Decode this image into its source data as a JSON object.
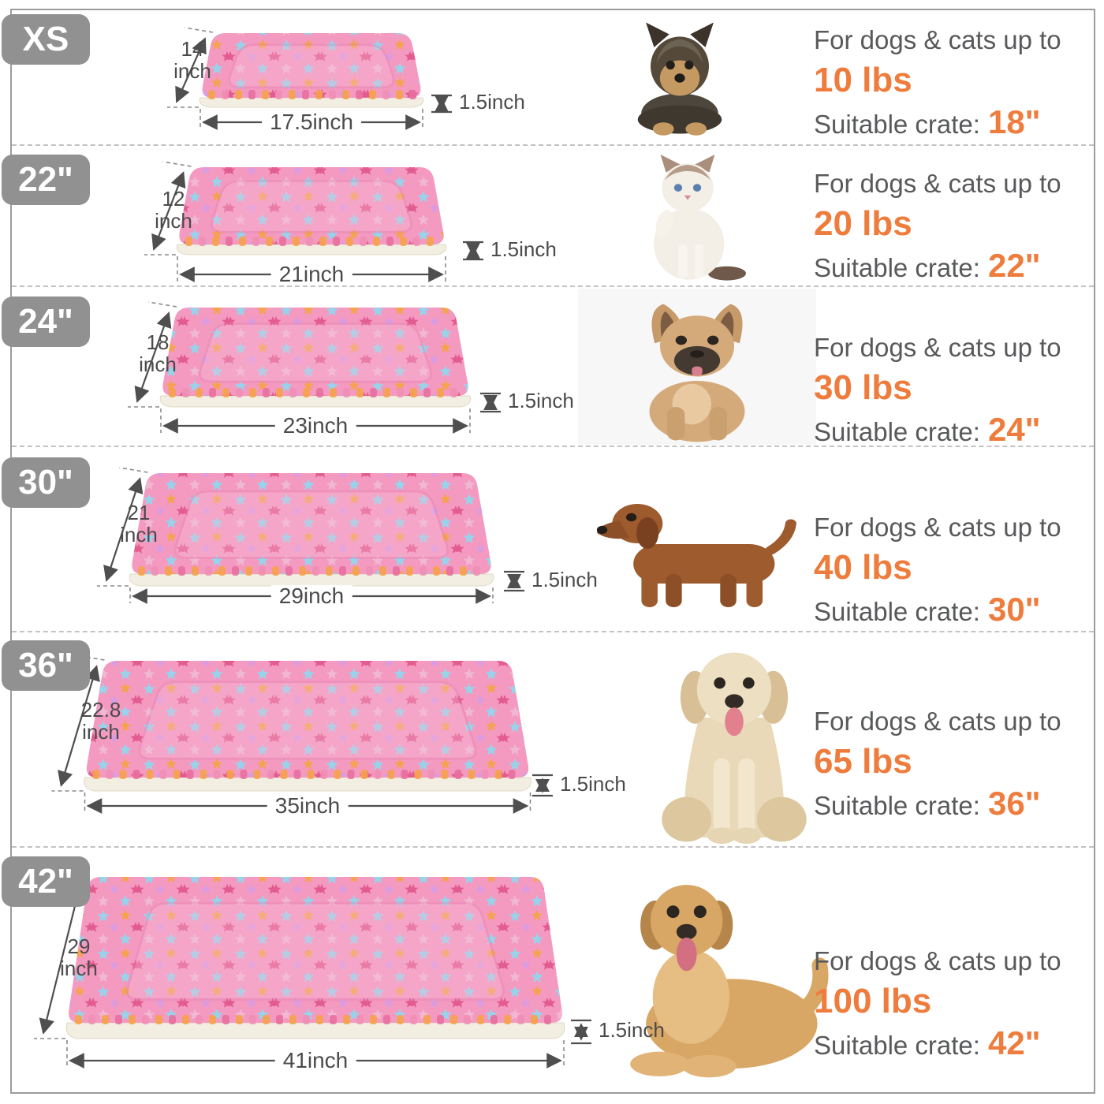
{
  "colors": {
    "accent_orange": "#ee7c3d",
    "text_gray": "#58595b",
    "badge_gray": "#919191",
    "mat_pink": "#f49ac1",
    "mat_seam_pink": "#e27fae",
    "fleece_white": "#f2eee1",
    "star_blue": "#92d6ec",
    "star_orange": "#f5a24b",
    "star_violet": "#da9be0",
    "star_hot_pink": "#e2588c",
    "star_light_pink": "#f0b9d3"
  },
  "rows": [
    {
      "badge": "XS",
      "mat": {
        "depth_value": "14",
        "depth_unit": "inch",
        "width": "17.5inch",
        "thickness": "1.5inch"
      },
      "pet": "yorkshire-terrier-puppy",
      "caption": {
        "line1": "For dogs & cats up to",
        "weight": "10 lbs",
        "crate_label": "Suitable crate:",
        "crate_size": "18\""
      }
    },
    {
      "badge": "22\"",
      "mat": {
        "depth_value": "12",
        "depth_unit": "inch",
        "width": "21inch",
        "thickness": "1.5inch"
      },
      "pet": "white-cat",
      "caption": {
        "line1": "For dogs & cats up to",
        "weight": "20 lbs",
        "crate_label": "Suitable crate:",
        "crate_size": "22\""
      }
    },
    {
      "badge": "24\"",
      "mat": {
        "depth_value": "18",
        "depth_unit": "inch",
        "width": "23inch",
        "thickness": "1.5inch"
      },
      "pet": "french-bulldog",
      "caption": {
        "line1": "For dogs & cats up to",
        "weight": "30 lbs",
        "crate_label": "Suitable crate:",
        "crate_size": "24\""
      }
    },
    {
      "badge": "30\"",
      "mat": {
        "depth_value": "21",
        "depth_unit": "inch",
        "width": "29inch",
        "thickness": "1.5inch"
      },
      "pet": "dachshund",
      "caption": {
        "line1": "For dogs & cats up to",
        "weight": "40 lbs",
        "crate_label": "Suitable crate:",
        "crate_size": "30\""
      }
    },
    {
      "badge": "36\"",
      "mat": {
        "depth_value": "22.8",
        "depth_unit": "inch",
        "width": "35inch",
        "thickness": "1.5inch"
      },
      "pet": "golden-retriever-sitting",
      "caption": {
        "line1": "For dogs & cats up to",
        "weight": "65 lbs",
        "crate_label": "Suitable crate:",
        "crate_size": "36\""
      }
    },
    {
      "badge": "42\"",
      "mat": {
        "depth_value": "29",
        "depth_unit": "inch",
        "width": "41inch",
        "thickness": "1.5inch"
      },
      "pet": "golden-retriever-lying",
      "caption": {
        "line1": "For dogs & cats up to",
        "weight": "100 lbs",
        "crate_label": "Suitable crate:",
        "crate_size": "42\""
      }
    }
  ]
}
